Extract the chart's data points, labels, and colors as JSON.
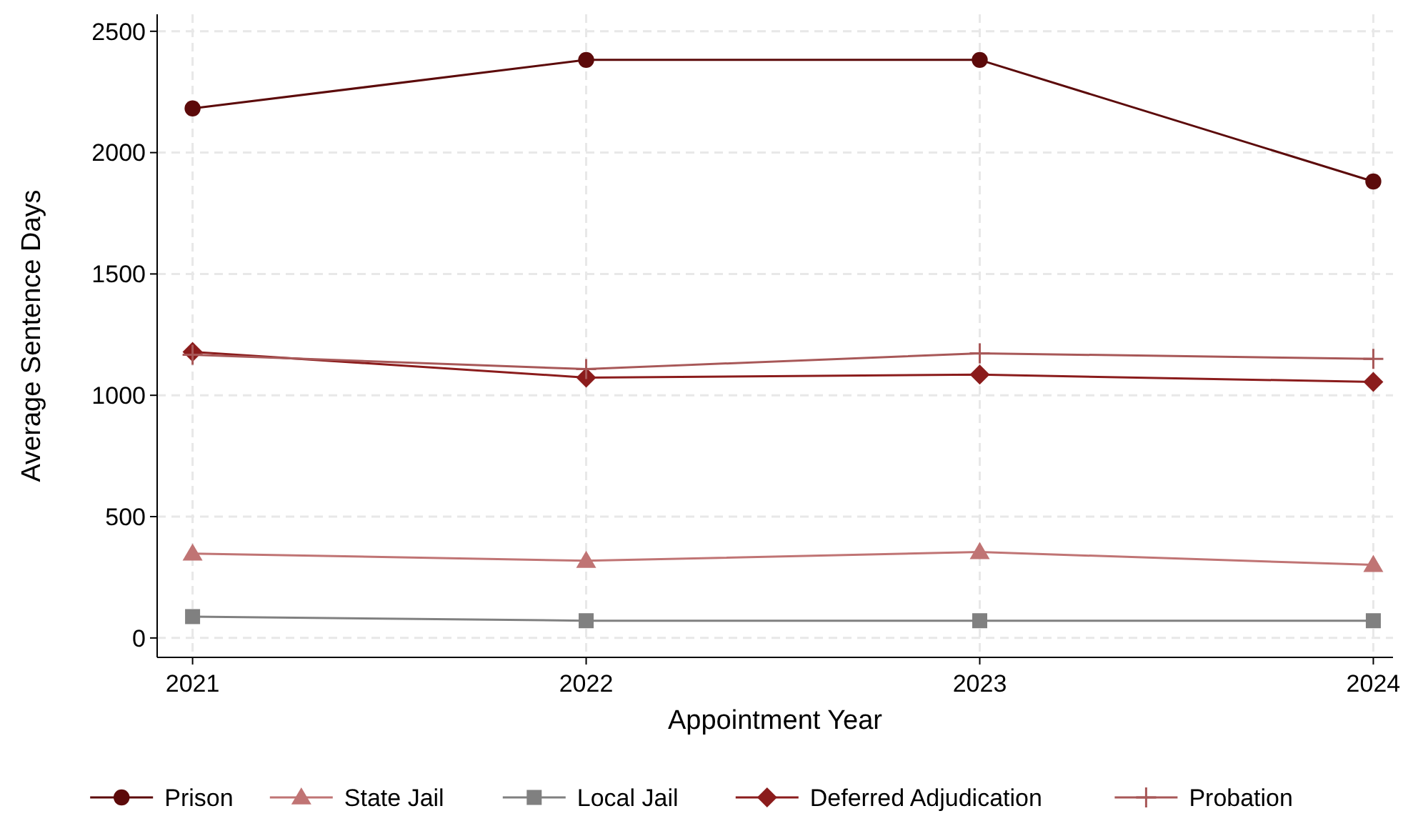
{
  "chart_data": {
    "type": "line",
    "xlabel": "Appointment Year",
    "ylabel": "Average Sentence Days",
    "x": [
      2021,
      2022,
      2023,
      2024
    ],
    "xlim": [
      2020.91,
      2024.05
    ],
    "xticks": [
      2021,
      2022,
      2023,
      2024
    ],
    "ylim": [
      -80,
      2570
    ],
    "yticks": [
      0,
      500,
      1000,
      1500,
      2000,
      2500
    ],
    "grid": true,
    "legend": "bottom",
    "line_style": "solid",
    "series": [
      {
        "name": "Prison",
        "color": "#5c0a0a",
        "marker": "circle",
        "values": [
          2182,
          2382,
          2382,
          1881
        ]
      },
      {
        "name": "State Jail",
        "color": "#c07474",
        "marker": "triangle",
        "values": [
          348,
          318,
          354,
          301
        ]
      },
      {
        "name": "Local Jail",
        "color": "#808080",
        "marker": "square",
        "values": [
          88,
          71,
          71,
          71
        ]
      },
      {
        "name": "Deferred Adjudication",
        "color": "#8b1c1c",
        "marker": "diamond",
        "values": [
          1179,
          1073,
          1085,
          1055
        ]
      },
      {
        "name": "Probation",
        "color": "#a85858",
        "marker": "cross",
        "values": [
          1167,
          1108,
          1173,
          1150
        ]
      }
    ]
  }
}
